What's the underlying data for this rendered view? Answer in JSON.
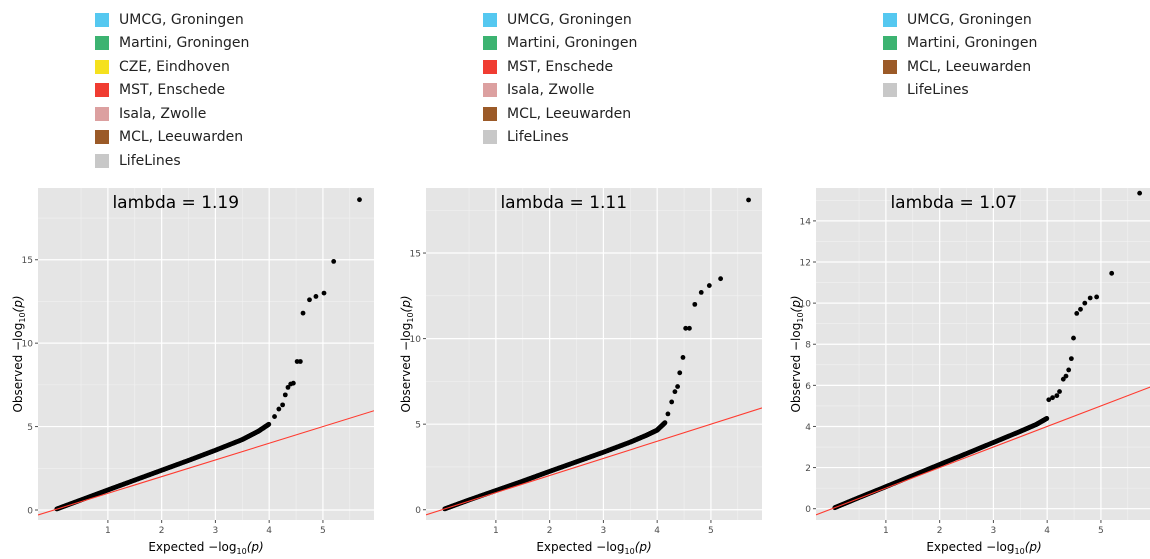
{
  "colors": {
    "panel_bg": "#e5e5e5",
    "grid_major": "#ffffff",
    "grid_minor": "#f2f2f2",
    "points": "#000000",
    "reference_line": "#ff3b30",
    "tick_text": "#4d4d4d"
  },
  "panels": [
    {
      "legend": [
        {
          "label": "UMCG, Groningen",
          "color": "#55c8f0"
        },
        {
          "label": "Martini, Groningen",
          "color": "#3cb371"
        },
        {
          "label": "CZE, Eindhoven",
          "color": "#f5e11e"
        },
        {
          "label": "MST, Enschede",
          "color": "#f03c32"
        },
        {
          "label": "Isala, Zwolle",
          "color": "#dca0a0"
        },
        {
          "label": "MCL, Leeuwarden",
          "color": "#9b5a28"
        },
        {
          "label": "LifeLines",
          "color": "#c8c8c8"
        }
      ]
    },
    {
      "legend": [
        {
          "label": "UMCG, Groningen",
          "color": "#55c8f0"
        },
        {
          "label": "Martini, Groningen",
          "color": "#3cb371"
        },
        {
          "label": "MST, Enschede",
          "color": "#f03c32"
        },
        {
          "label": "Isala, Zwolle",
          "color": "#dca0a0"
        },
        {
          "label": "MCL, Leeuwarden",
          "color": "#9b5a28"
        },
        {
          "label": "LifeLines",
          "color": "#c8c8c8"
        }
      ]
    },
    {
      "legend": [
        {
          "label": "UMCG, Groningen",
          "color": "#55c8f0"
        },
        {
          "label": "Martini, Groningen",
          "color": "#3cb371"
        },
        {
          "label": "MCL, Leeuwarden",
          "color": "#9b5a28"
        },
        {
          "label": "LifeLines",
          "color": "#c8c8c8"
        }
      ]
    }
  ],
  "chart_data": [
    {
      "type": "scatter",
      "annotation": "lambda = 1.19",
      "xlabel": "Expected",
      "ylabel": "Observed",
      "axis_expression": "−log10(p)",
      "xlim": [
        -0.3,
        5.95
      ],
      "ylim": [
        -0.6,
        19.3
      ],
      "xticks": [
        1,
        2,
        3,
        4,
        5
      ],
      "yticks": [
        0,
        5,
        10,
        15
      ],
      "grid": true,
      "reference_line": {
        "slope": 1,
        "intercept": 0
      },
      "curve": {
        "x": [
          0.05,
          0.5,
          1.0,
          1.5,
          2.0,
          2.5,
          3.0,
          3.5,
          3.8,
          4.0
        ],
        "y": [
          0.06,
          0.6,
          1.2,
          1.79,
          2.38,
          2.97,
          3.58,
          4.22,
          4.72,
          5.15
        ]
      },
      "points": [
        [
          4.1,
          5.6
        ],
        [
          4.18,
          6.05
        ],
        [
          4.25,
          6.3
        ],
        [
          4.3,
          6.9
        ],
        [
          4.35,
          7.35
        ],
        [
          4.4,
          7.55
        ],
        [
          4.45,
          7.6
        ],
        [
          4.52,
          8.9
        ],
        [
          4.58,
          8.9
        ],
        [
          4.63,
          11.8
        ],
        [
          4.75,
          12.6
        ],
        [
          4.87,
          12.8
        ],
        [
          5.02,
          13.0
        ],
        [
          5.2,
          14.9
        ],
        [
          5.68,
          18.6
        ]
      ]
    },
    {
      "type": "scatter",
      "annotation": "lambda = 1.11",
      "xlabel": "Expected",
      "ylabel": "Observed",
      "axis_expression": "−log10(p)",
      "xlim": [
        -0.3,
        5.95
      ],
      "ylim": [
        -0.6,
        18.8
      ],
      "xticks": [
        1,
        2,
        3,
        4,
        5
      ],
      "yticks": [
        0,
        5,
        10,
        15
      ],
      "grid": true,
      "reference_line": {
        "slope": 1,
        "intercept": 0
      },
      "curve": {
        "x": [
          0.05,
          0.5,
          1.0,
          1.5,
          2.0,
          2.5,
          3.0,
          3.5,
          3.8,
          4.0,
          4.15
        ],
        "y": [
          0.05,
          0.57,
          1.12,
          1.67,
          2.24,
          2.8,
          3.36,
          3.95,
          4.35,
          4.65,
          5.1
        ]
      },
      "points": [
        [
          4.2,
          5.6
        ],
        [
          4.27,
          6.3
        ],
        [
          4.33,
          6.9
        ],
        [
          4.38,
          7.2
        ],
        [
          4.42,
          8.0
        ],
        [
          4.48,
          8.9
        ],
        [
          4.53,
          10.6
        ],
        [
          4.6,
          10.6
        ],
        [
          4.7,
          12.0
        ],
        [
          4.82,
          12.7
        ],
        [
          4.97,
          13.1
        ],
        [
          5.18,
          13.5
        ],
        [
          5.7,
          18.1
        ]
      ]
    },
    {
      "type": "scatter",
      "annotation": "lambda = 1.07",
      "xlabel": "Expected",
      "ylabel": "Observed",
      "axis_expression": "−log10(p)",
      "xlim": [
        -0.3,
        5.95
      ],
      "ylim": [
        -0.55,
        15.6
      ],
      "xticks": [
        1,
        2,
        3,
        4,
        5
      ],
      "yticks": [
        0,
        2,
        4,
        6,
        8,
        10,
        12,
        14
      ],
      "grid": true,
      "reference_line": {
        "slope": 1,
        "intercept": 0
      },
      "curve": {
        "x": [
          0.05,
          0.5,
          1.0,
          1.5,
          2.0,
          2.5,
          3.0,
          3.5,
          3.8,
          4.0
        ],
        "y": [
          0.05,
          0.54,
          1.07,
          1.61,
          2.15,
          2.68,
          3.22,
          3.76,
          4.1,
          4.4
        ]
      },
      "points": [
        [
          4.03,
          5.3
        ],
        [
          4.1,
          5.4
        ],
        [
          4.18,
          5.5
        ],
        [
          4.23,
          5.7
        ],
        [
          4.3,
          6.3
        ],
        [
          4.35,
          6.45
        ],
        [
          4.4,
          6.75
        ],
        [
          4.45,
          7.3
        ],
        [
          4.49,
          8.3
        ],
        [
          4.55,
          9.5
        ],
        [
          4.62,
          9.7
        ],
        [
          4.7,
          10.0
        ],
        [
          4.8,
          10.25
        ],
        [
          4.92,
          10.3
        ],
        [
          5.2,
          11.45
        ],
        [
          5.72,
          15.35
        ]
      ]
    }
  ]
}
